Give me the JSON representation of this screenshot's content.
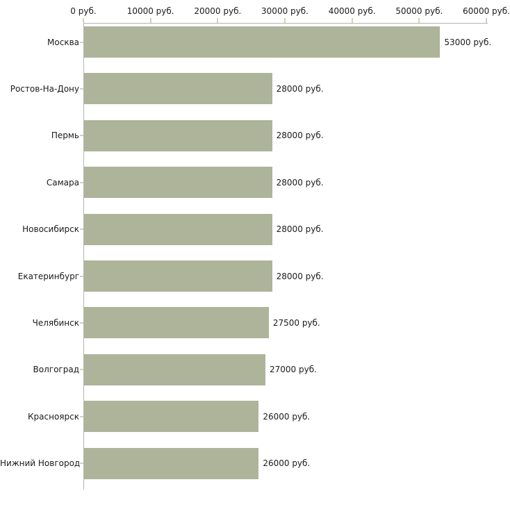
{
  "chart_data": {
    "type": "bar",
    "orientation": "horizontal",
    "title": "",
    "xlabel": "",
    "ylabel": "",
    "unit": "руб.",
    "categories": [
      "Москва",
      "Ростов-На-Дону",
      "Пермь",
      "Самара",
      "Новосибирск",
      "Екатеринбург",
      "Челябинск",
      "Волгоград",
      "Красноярск",
      "Нижний Новгород"
    ],
    "values": [
      53000,
      28000,
      28000,
      28000,
      28000,
      28000,
      27500,
      27000,
      26000,
      26000
    ],
    "value_labels": [
      "53000 руб.",
      "28000 руб.",
      "28000 руб.",
      "28000 руб.",
      "28000 руб.",
      "28000 руб.",
      "27500 руб.",
      "27000 руб.",
      "26000 руб.",
      "26000 руб."
    ],
    "x_tick_values": [
      0,
      10000,
      20000,
      30000,
      40000,
      50000,
      60000
    ],
    "x_tick_labels": [
      "0 руб.",
      "10000 руб.",
      "20000 руб.",
      "30000 руб.",
      "40000 руб.",
      "50000 руб.",
      "60000 руб."
    ],
    "xlim": [
      0,
      60000
    ],
    "grid": false,
    "legend": false,
    "axis_position": "top-left",
    "colors": {
      "bar": "#aeb49a",
      "axis_line": "#b3b3b3",
      "tick": "#d2d3b8",
      "text": "#1a1a1a",
      "background": "#ffffff"
    }
  }
}
